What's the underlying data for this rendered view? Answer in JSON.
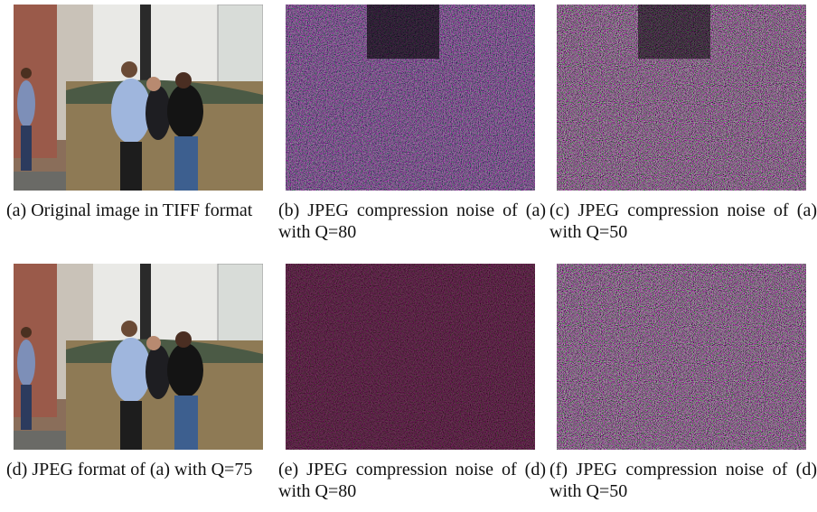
{
  "panels": [
    {
      "caption": "(a) Original image in TIFF format"
    },
    {
      "caption": "(b) JPEG compression noise of (a) with Q=80"
    },
    {
      "caption": "(c) JPEG compression noise of (a) with Q=50"
    },
    {
      "caption": "(d) JPEG format of (a) with Q=75"
    },
    {
      "caption": "(e) JPEG compression noise of (d) with Q=80"
    },
    {
      "caption": "(f) JPEG compression noise of (d) with Q=50"
    }
  ]
}
